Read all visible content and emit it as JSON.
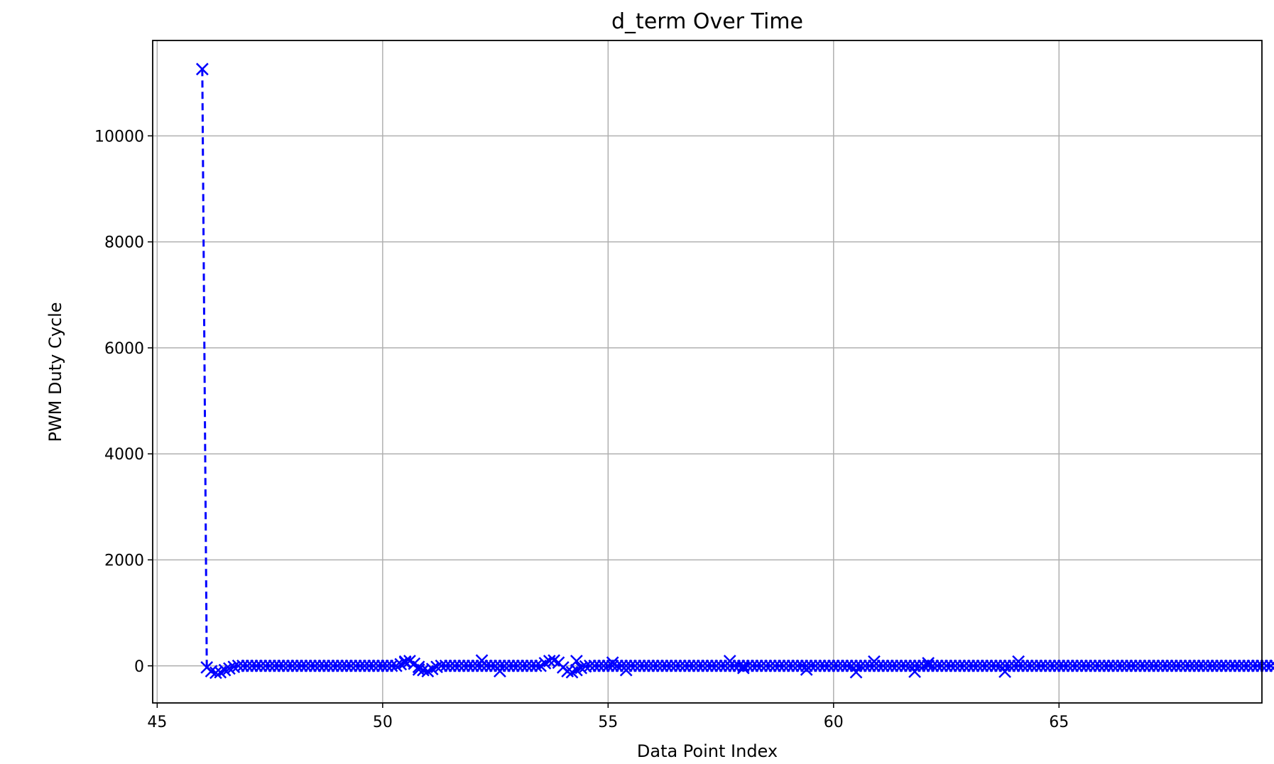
{
  "chart_data": {
    "type": "line",
    "title": "d_term Over Time",
    "xlabel": "Data Point Index",
    "ylabel": "PWM Duty Cycle",
    "xlim": [
      44.9,
      69.5
    ],
    "ylim": [
      -700,
      11800
    ],
    "xticks": [
      45,
      50,
      55,
      60,
      65
    ],
    "yticks": [
      0,
      2000,
      4000,
      6000,
      8000,
      10000
    ],
    "grid": true,
    "line_style": "dashed",
    "marker": "x",
    "color": "#0000ff",
    "x_start": 46,
    "x_step": 0.1,
    "series": [
      {
        "values": [
          11260,
          -30,
          -100,
          -130,
          -120,
          -80,
          -50,
          -20,
          0,
          0,
          0,
          0,
          0,
          0,
          0,
          0,
          0,
          0,
          0,
          0,
          0,
          0,
          0,
          0,
          0,
          0,
          0,
          0,
          0,
          0,
          0,
          0,
          0,
          0,
          0,
          0,
          0,
          0,
          0,
          0,
          0,
          0,
          0,
          0,
          30,
          60,
          90,
          40,
          -20,
          -80,
          -100,
          -60,
          -20,
          0,
          0,
          0,
          0,
          0,
          0,
          0,
          0,
          0,
          0,
          0,
          0,
          0,
          0,
          0,
          0,
          0,
          0,
          0,
          0,
          0,
          0,
          0,
          50,
          90,
          100,
          60,
          -30,
          -100,
          -120,
          -80,
          -40,
          -10,
          0,
          0,
          0,
          0,
          0,
          0,
          0,
          0,
          0,
          0,
          0,
          0,
          0,
          0,
          0,
          0,
          0,
          0,
          0,
          0,
          0,
          0,
          0,
          0,
          0,
          0,
          0,
          0,
          0,
          0,
          0,
          0,
          0,
          0,
          0,
          0,
          0,
          0,
          0,
          0,
          0,
          0,
          0,
          0,
          0,
          0,
          0,
          0,
          0,
          0,
          0,
          0,
          0,
          0,
          0,
          0,
          0,
          0,
          0,
          0,
          0,
          0,
          0,
          0,
          0,
          0,
          0,
          0,
          0,
          0,
          0,
          0,
          0,
          0,
          0,
          0,
          0,
          0,
          0,
          0,
          0,
          0,
          0,
          0,
          0,
          0,
          0,
          0,
          0,
          0,
          0,
          0,
          0,
          0,
          0,
          0,
          0,
          0,
          0,
          0,
          0,
          0,
          0,
          0,
          0,
          0,
          0,
          0,
          0,
          0,
          0,
          0,
          0,
          0,
          0,
          0,
          0,
          0,
          0,
          0,
          0,
          0,
          0,
          0,
          0,
          0,
          0,
          0,
          0,
          0,
          0,
          0,
          0,
          0,
          0,
          0,
          0,
          0,
          0,
          0,
          0,
          0,
          0,
          0,
          0,
          0,
          0,
          0,
          0,
          0,
          0,
          0,
          0
        ]
      }
    ],
    "features": [
      {
        "x": 50.5,
        "y": 80
      },
      {
        "x": 50.8,
        "y": -70
      },
      {
        "x": 52.2,
        "y": 100
      },
      {
        "x": 52.6,
        "y": -100
      },
      {
        "x": 54.3,
        "y": 90
      },
      {
        "x": 55.1,
        "y": 60
      },
      {
        "x": 55.4,
        "y": -80
      },
      {
        "x": 57.7,
        "y": 90
      },
      {
        "x": 58.0,
        "y": -40
      },
      {
        "x": 59.4,
        "y": -70
      },
      {
        "x": 60.5,
        "y": -120
      },
      {
        "x": 60.9,
        "y": 80
      },
      {
        "x": 61.8,
        "y": -110
      },
      {
        "x": 62.1,
        "y": 50
      },
      {
        "x": 63.8,
        "y": -110
      },
      {
        "x": 64.1,
        "y": 80
      }
    ]
  }
}
